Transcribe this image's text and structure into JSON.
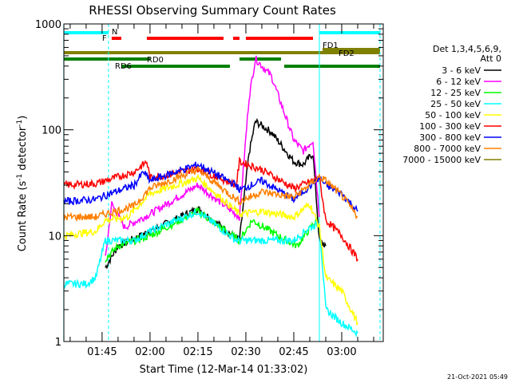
{
  "chart_data": {
    "type": "line",
    "title": "RHESSI Observing Summary Count Rates",
    "xlabel": "Start Time (12-Mar-14 01:33:02)",
    "ylabel_main": "Count Rate (s",
    "ylabel_sup1": "-1",
    "ylabel_mid": " detector",
    "ylabel_sup2": "-1",
    "ylabel_end": ")",
    "yscale": "log",
    "ylim": [
      1,
      1000
    ],
    "xlim": [
      "01:33:02",
      "03:13:00"
    ],
    "x_ticks": [
      "01:45",
      "02:00",
      "02:15",
      "02:30",
      "02:45",
      "03:00"
    ],
    "y_ticks": [
      "1",
      "10",
      "100",
      "1000"
    ],
    "legend_title": [
      "Det 1,3,4,5,6,9,",
      "Att 0"
    ],
    "legend_position": "right",
    "series": [
      {
        "name": "3 - 6 keV",
        "color": "#000000",
        "points": [
          [
            "01:46",
            5
          ],
          [
            "01:50",
            8
          ],
          [
            "02:00",
            11
          ],
          [
            "02:15",
            18
          ],
          [
            "02:28",
            9
          ],
          [
            "02:31",
            60
          ],
          [
            "02:33",
            120
          ],
          [
            "02:38",
            95
          ],
          [
            "02:45",
            50
          ],
          [
            "02:48",
            47
          ],
          [
            "02:51",
            60
          ],
          [
            "02:53",
            9
          ],
          [
            "02:55",
            8
          ]
        ]
      },
      {
        "name": "6 - 12 keV",
        "color": "#ff00ff",
        "points": [
          [
            "01:46",
            6
          ],
          [
            "01:48",
            20
          ],
          [
            "01:52",
            12
          ],
          [
            "02:00",
            16
          ],
          [
            "02:15",
            30
          ],
          [
            "02:28",
            15
          ],
          [
            "02:31",
            200
          ],
          [
            "02:33",
            470
          ],
          [
            "02:38",
            320
          ],
          [
            "02:45",
            80
          ],
          [
            "02:48",
            63
          ],
          [
            "02:51",
            80
          ],
          [
            "02:53",
            15
          ]
        ]
      },
      {
        "name": "12 - 25 keV",
        "color": "#00ff00",
        "points": [
          [
            "01:46",
            6
          ],
          [
            "01:50",
            8
          ],
          [
            "02:00",
            10
          ],
          [
            "02:15",
            17
          ],
          [
            "02:28",
            9
          ],
          [
            "02:32",
            14
          ],
          [
            "02:40",
            10
          ],
          [
            "02:46",
            8
          ],
          [
            "02:52",
            14
          ],
          [
            "02:53",
            12
          ]
        ]
      },
      {
        "name": "25 - 50 keV",
        "color": "#00ffff",
        "points": [
          [
            "01:33",
            3.5
          ],
          [
            "01:40",
            3.5
          ],
          [
            "01:43",
            4
          ],
          [
            "01:46",
            9
          ],
          [
            "01:55",
            9
          ],
          [
            "02:00",
            11
          ],
          [
            "02:15",
            17
          ],
          [
            "02:27",
            9
          ],
          [
            "02:35",
            9
          ],
          [
            "02:45",
            9
          ],
          [
            "02:50",
            12
          ],
          [
            "02:53",
            13
          ],
          [
            "02:55",
            2
          ],
          [
            "03:00",
            1.5
          ],
          [
            "03:05",
            1.2
          ]
        ]
      },
      {
        "name": "50 - 100 keV",
        "color": "#ffff00",
        "points": [
          [
            "01:33",
            10
          ],
          [
            "01:43",
            11
          ],
          [
            "01:46",
            14
          ],
          [
            "01:53",
            15
          ],
          [
            "02:00",
            25
          ],
          [
            "02:15",
            35
          ],
          [
            "02:28",
            16
          ],
          [
            "02:35",
            17
          ],
          [
            "02:45",
            15
          ],
          [
            "02:50",
            20
          ],
          [
            "02:53",
            12
          ],
          [
            "02:55",
            4
          ],
          [
            "03:00",
            3
          ],
          [
            "03:05",
            1.5
          ]
        ]
      },
      {
        "name": "100 - 300 keV",
        "color": "#ff0000",
        "points": [
          [
            "01:33",
            30
          ],
          [
            "01:43",
            31
          ],
          [
            "01:46",
            33
          ],
          [
            "01:55",
            40
          ],
          [
            "01:59",
            50
          ],
          [
            "02:00",
            35
          ],
          [
            "02:15",
            43
          ],
          [
            "02:27",
            30
          ],
          [
            "02:28",
            50
          ],
          [
            "02:35",
            42
          ],
          [
            "02:45",
            28
          ],
          [
            "02:53",
            35
          ],
          [
            "02:55",
            14
          ],
          [
            "03:00",
            10
          ],
          [
            "03:05",
            6
          ]
        ]
      },
      {
        "name": "300 - 800 keV",
        "color": "#0000ff",
        "points": [
          [
            "01:33",
            21
          ],
          [
            "01:43",
            22
          ],
          [
            "01:46",
            24
          ],
          [
            "01:55",
            30
          ],
          [
            "01:58",
            40
          ],
          [
            "02:00",
            33
          ],
          [
            "02:15",
            47
          ],
          [
            "02:27",
            30
          ],
          [
            "02:28",
            27
          ],
          [
            "02:35",
            33
          ],
          [
            "02:45",
            22
          ],
          [
            "02:53",
            35
          ],
          [
            "02:55",
            30
          ],
          [
            "03:00",
            25
          ],
          [
            "03:05",
            17
          ]
        ]
      },
      {
        "name": "800 - 7000 keV",
        "color": "#ff8000",
        "points": [
          [
            "01:33",
            15
          ],
          [
            "01:43",
            15
          ],
          [
            "01:46",
            16
          ],
          [
            "01:55",
            19
          ],
          [
            "02:00",
            28
          ],
          [
            "02:15",
            42
          ],
          [
            "02:27",
            22
          ],
          [
            "02:28",
            21
          ],
          [
            "02:35",
            26
          ],
          [
            "02:45",
            23
          ],
          [
            "02:53",
            36
          ],
          [
            "02:55",
            33
          ],
          [
            "03:00",
            24
          ],
          [
            "03:05",
            15
          ]
        ]
      },
      {
        "name": "7000 - 15000 keV",
        "color": "#808000",
        "points": []
      }
    ],
    "state_bars": [
      {
        "label": "N",
        "color": "#00ffff"
      },
      {
        "label": "F",
        "color": "#ff0000"
      },
      {
        "label": "FD1",
        "color": "#808000"
      },
      {
        "label": "FD2",
        "color": "#808000"
      },
      {
        "label": "RD0",
        "color": "#008000"
      },
      {
        "label": "RD6",
        "color": "#008000"
      }
    ]
  },
  "footer": {
    "timestamp": "21-Oct-2021 05:49"
  }
}
